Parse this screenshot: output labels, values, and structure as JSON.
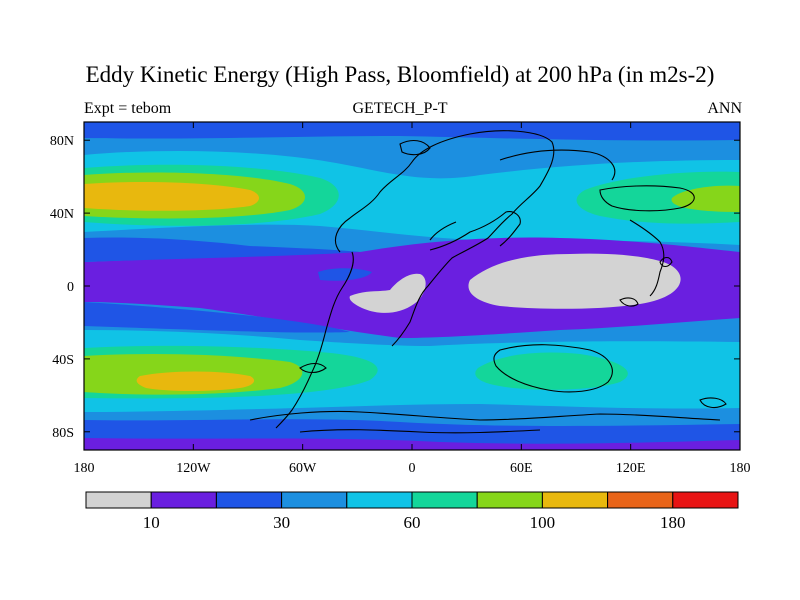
{
  "title": "Eddy Kinetic Energy (High Pass, Bloomfield) at 200 hPa (in m2s-2)",
  "subtitle_left": "Expt = tebom",
  "subtitle_center": "GETECH_P-T",
  "subtitle_right": "ANN",
  "map": {
    "projection": "cylindrical equidistant",
    "lon_range": [
      -180,
      180
    ],
    "lat_range": [
      -90,
      90
    ],
    "x_ticks": [
      {
        "lon": -180,
        "label": "180"
      },
      {
        "lon": -120,
        "label": "120W"
      },
      {
        "lon": -60,
        "label": "60W"
      },
      {
        "lon": 0,
        "label": "0"
      },
      {
        "lon": 60,
        "label": "60E"
      },
      {
        "lon": 120,
        "label": "120E"
      },
      {
        "lon": 180,
        "label": "180"
      }
    ],
    "y_ticks": [
      {
        "lat": 80,
        "label": "80N"
      },
      {
        "lat": 40,
        "label": "40N"
      },
      {
        "lat": 0,
        "label": "0"
      },
      {
        "lat": -40,
        "label": "40S"
      },
      {
        "lat": -80,
        "label": "80S"
      }
    ]
  },
  "colorbar": {
    "colors": [
      "#d3d3d3",
      "#6a1fe0",
      "#1f55e6",
      "#1c8fe0",
      "#10c3e6",
      "#14d69a",
      "#86d61a",
      "#e8b80e",
      "#e86419",
      "#e81414"
    ],
    "labels": [
      {
        "after_box": 1,
        "text": "10"
      },
      {
        "after_box": 3,
        "text": "30"
      },
      {
        "after_box": 5,
        "text": "60"
      },
      {
        "after_box": 7,
        "text": "100"
      },
      {
        "after_box": 9,
        "text": "180"
      }
    ]
  }
}
